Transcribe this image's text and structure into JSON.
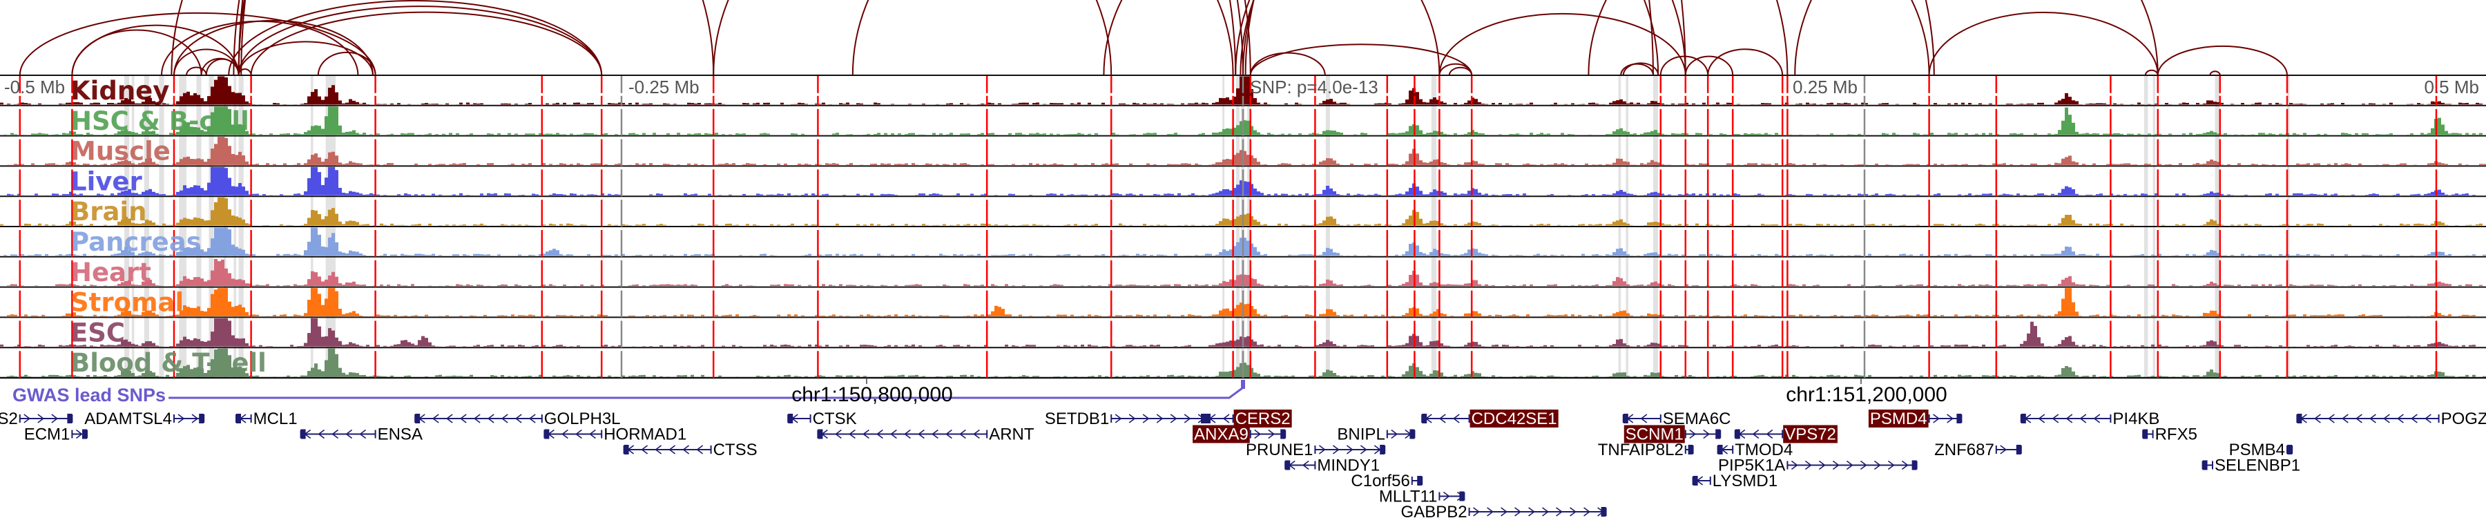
{
  "chart_data": {
    "type": "area",
    "title": "",
    "xlim_kb": [
      -500,
      500
    ],
    "axis_labels": [
      {
        "text": "-0.5 Mb",
        "kb": -500
      },
      {
        "text": "-0.25 Mb",
        "kb": -250
      },
      {
        "text": "SNP: p=4.0e-13",
        "kb": 0
      },
      {
        "text": "0.25 Mb",
        "kb": 250
      },
      {
        "text": "0.5 Mb",
        "kb": 500
      }
    ],
    "tracks": [
      {
        "name": "Kidney",
        "color": "#6b0000"
      },
      {
        "name": "HSC & B-cell",
        "color": "#55a355"
      },
      {
        "name": "Muscle",
        "color": "#c4675e"
      },
      {
        "name": "Liver",
        "color": "#4f4fe6"
      },
      {
        "name": "Brain",
        "color": "#c8922a"
      },
      {
        "name": "Pancreas",
        "color": "#85a2e0"
      },
      {
        "name": "Heart",
        "color": "#d46b7b"
      },
      {
        "name": "Stromal",
        "color": "#ff7410"
      },
      {
        "name": "ESC",
        "color": "#8b4665"
      },
      {
        "name": "Blood & T-cell",
        "color": "#6a8f69"
      }
    ],
    "peaks_kb": [
      [
        -472,
        0.1
      ],
      [
        -450,
        0.3
      ],
      [
        -441,
        0.3
      ],
      [
        -426,
        0.5
      ],
      [
        -421,
        0.4
      ],
      [
        -414,
        0.9
      ],
      [
        -411,
        1.0
      ],
      [
        -409,
        0.5
      ],
      [
        -404,
        0.45
      ],
      [
        -374,
        0.6
      ],
      [
        -367,
        0.8
      ],
      [
        -359,
        0.2
      ],
      [
        -8,
        0.3
      ],
      [
        -3,
        0.35
      ],
      [
        0,
        0.5
      ],
      [
        3,
        0.3
      ],
      [
        34,
        0.35
      ],
      [
        68,
        0.7
      ],
      [
        77,
        0.25
      ],
      [
        92,
        0.25
      ],
      [
        151,
        0.3
      ],
      [
        165,
        0.15
      ],
      [
        331,
        0.45
      ],
      [
        389,
        0.2
      ],
      [
        480,
        0.2
      ]
    ],
    "track_boosts": {
      "0": [
        [
          0,
          1.0
        ]
      ],
      "1": [
        [
          -367,
          1.0
        ],
        [
          -411,
          1.0
        ],
        [
          331,
          0.7
        ],
        [
          480,
          0.5
        ]
      ],
      "3": [
        [
          -414,
          1.0
        ],
        [
          -374,
          1.0
        ],
        [
          -367,
          1.0
        ]
      ],
      "5": [
        [
          -411,
          1.0
        ],
        [
          -374,
          1.0
        ],
        [
          -278,
          0.3
        ]
      ],
      "7": [
        [
          -374,
          0.95
        ],
        [
          -367,
          1.0
        ],
        [
          -99,
          0.45
        ],
        [
          331,
          0.9
        ]
      ],
      "8": [
        [
          -411,
          1.0
        ],
        [
          -374,
          1.0
        ],
        [
          317,
          0.9
        ],
        [
          -330,
          0.35
        ],
        [
          -338,
          0.25
        ]
      ],
      "9": [
        [
          -367,
          1.0
        ],
        [
          -411,
          0.9
        ]
      ]
    },
    "anchors_kb": [
      -492,
      -471,
      -430,
      -399,
      -349,
      -282,
      -258,
      -213,
      -171,
      -103,
      -53,
      -4,
      3,
      29,
      58,
      69,
      79,
      92,
      168,
      178,
      187,
      197,
      217,
      219,
      276,
      303,
      349,
      368,
      393,
      420,
      480
    ],
    "highlights_kb": [
      [
        -450,
        -448
      ],
      [
        -447,
        -446
      ],
      [
        -442,
        -440
      ],
      [
        -436,
        -434
      ],
      [
        -428,
        -425
      ],
      [
        -421,
        -419
      ],
      [
        -416,
        -414
      ],
      [
        -410,
        -409
      ],
      [
        -406,
        -405
      ],
      [
        -404,
        -402
      ],
      [
        -375,
        -374
      ],
      [
        -369,
        -365
      ],
      [
        -8.3,
        -7.5
      ],
      [
        -2.8,
        -1.4
      ],
      [
        -0.8,
        0.6
      ],
      [
        1.7,
        3.3
      ],
      [
        33.3,
        35
      ],
      [
        75.8,
        77.8
      ],
      [
        151,
        152
      ],
      [
        154,
        155
      ],
      [
        165,
        167
      ],
      [
        362.5,
        364
      ],
      [
        366,
        367
      ],
      [
        391,
        393
      ],
      [
        420,
        421
      ]
    ],
    "loops_kb": [
      [
        -492,
        -349,
        0.35
      ],
      [
        -471,
        -404,
        0.6
      ],
      [
        -471,
        -419,
        0.7
      ],
      [
        -430,
        -404,
        0.8
      ],
      [
        -430,
        -350,
        0.55
      ],
      [
        -435,
        -356,
        0.55
      ],
      [
        -425,
        -417,
        0.8
      ],
      [
        -419,
        -404,
        0.9
      ],
      [
        -417,
        -404,
        1
      ],
      [
        -404,
        -399,
        1
      ],
      [
        -404,
        -350,
        0.5
      ],
      [
        -408,
        -258,
        0.4
      ],
      [
        -404,
        -258,
        0.38
      ],
      [
        -399,
        -258,
        0.36
      ],
      [
        -404,
        0,
        1
      ],
      [
        -404,
        -3,
        1
      ],
      [
        -406,
        3,
        1
      ],
      [
        -403,
        165,
        1
      ],
      [
        -404,
        178,
        1
      ],
      [
        -372,
        -349,
        0.8
      ],
      [
        -431,
        -213,
        1
      ],
      [
        -213,
        -53,
        1
      ],
      [
        -157,
        -4,
        1
      ],
      [
        3,
        33,
        0.6
      ],
      [
        3,
        92,
        0.28
      ],
      [
        -3,
        167,
        1
      ],
      [
        -1,
        178,
        1
      ],
      [
        0,
        219,
        1
      ],
      [
        1,
        278,
        1
      ],
      [
        79,
        178,
        0.5
      ],
      [
        79,
        92,
        0.7
      ],
      [
        83,
        92,
        0.7
      ],
      [
        -56,
        79,
        1
      ],
      [
        152,
        165,
        0.7
      ],
      [
        153,
        167,
        0.7
      ],
      [
        168,
        187,
        0.8
      ],
      [
        178,
        197,
        0.8
      ],
      [
        187,
        217,
        0.7
      ],
      [
        139,
        276,
        1
      ],
      [
        276,
        368,
        0.55
      ],
      [
        363,
        368,
        0.8
      ],
      [
        368,
        420,
        0.45
      ],
      [
        222,
        368,
        1
      ],
      [
        389,
        393,
        0.8
      ]
    ]
  },
  "gwas": {
    "label": "GWAS lead SNPs",
    "snp_kb": 0,
    "color": "#6a5acd"
  },
  "coords": [
    {
      "label": "chr1:150,800,000",
      "kb": -151.4
    },
    {
      "label": "chr1:151,200,000",
      "kb": 248.6
    }
  ],
  "genes": [
    {
      "name": "S2",
      "start": -492,
      "end": -471,
      "strand": "+",
      "row": 0,
      "label_side": "left",
      "highlight": false
    },
    {
      "name": "ECM1",
      "start": -471,
      "end": -465,
      "strand": "+",
      "row": 1,
      "label_side": "left",
      "highlight": false
    },
    {
      "name": "ADAMTSL4",
      "start": -430,
      "end": -418,
      "strand": "+",
      "row": 0,
      "label_side": "left",
      "highlight": false
    },
    {
      "name": "MCL1",
      "start": -405,
      "end": -399,
      "strand": "-",
      "row": 0,
      "label_side": "right",
      "highlight": false
    },
    {
      "name": "ENSA",
      "start": -379,
      "end": -349,
      "strand": "-",
      "row": 1,
      "label_side": "right",
      "highlight": false
    },
    {
      "name": "GOLPH3L",
      "start": -333,
      "end": -282,
      "strand": "-",
      "row": 0,
      "label_side": "right",
      "highlight": false
    },
    {
      "name": "HORMAD1",
      "start": -281,
      "end": -258,
      "strand": "-",
      "row": 1,
      "label_side": "right",
      "highlight": false
    },
    {
      "name": "CTSS",
      "start": -249,
      "end": -214,
      "strand": "-",
      "row": 2,
      "label_side": "right",
      "highlight": false
    },
    {
      "name": "CTSK",
      "start": -183,
      "end": -174,
      "strand": "-",
      "row": 0,
      "label_side": "right",
      "highlight": false
    },
    {
      "name": "ARNT",
      "start": -171,
      "end": -103,
      "strand": "-",
      "row": 1,
      "label_side": "right",
      "highlight": false
    },
    {
      "name": "SETDB1",
      "start": -53,
      "end": -15,
      "strand": "+",
      "row": 0,
      "label_side": "left",
      "highlight": false
    },
    {
      "name": "CERS2",
      "start": -15,
      "end": -4,
      "strand": "-",
      "row": 0,
      "label_side": "right",
      "highlight": true
    },
    {
      "name": "ANXA9",
      "start": 3,
      "end": 17,
      "strand": "+",
      "row": 1,
      "label_side": "left",
      "highlight": true
    },
    {
      "name": "BNIPL",
      "start": 58,
      "end": 69,
      "strand": "+",
      "row": 1,
      "label_side": "left",
      "highlight": false
    },
    {
      "name": "PRUNE1",
      "start": 29,
      "end": 57,
      "strand": "+",
      "row": 2,
      "label_side": "left",
      "highlight": false
    },
    {
      "name": "MINDY1",
      "start": 17,
      "end": 29,
      "strand": "-",
      "row": 3,
      "label_side": "right",
      "highlight": false
    },
    {
      "name": "C1orf56",
      "start": 68,
      "end": 72,
      "strand": "+",
      "row": 4,
      "label_side": "left",
      "highlight": false
    },
    {
      "name": "MLLT11",
      "start": 79,
      "end": 89,
      "strand": "+",
      "row": 5,
      "label_side": "left",
      "highlight": false
    },
    {
      "name": "GABPB2",
      "start": 91,
      "end": 146,
      "strand": "+",
      "row": 6,
      "label_side": "left",
      "highlight": false
    },
    {
      "name": "CDC42SE1",
      "start": 72,
      "end": 91,
      "strand": "-",
      "row": 0,
      "label_side": "right",
      "highlight": true
    },
    {
      "name": "SEMA6C",
      "start": 153,
      "end": 168,
      "strand": "-",
      "row": 0,
      "label_side": "right",
      "highlight": false
    },
    {
      "name": "SCNM1",
      "start": 178,
      "end": 192,
      "strand": "+",
      "row": 1,
      "label_side": "left",
      "highlight": true
    },
    {
      "name": "TNFAIP8L2",
      "start": 178,
      "end": 181,
      "strand": "+",
      "row": 2,
      "label_side": "left",
      "highlight": false
    },
    {
      "name": "TMOD4",
      "start": 191,
      "end": 197,
      "strand": "-",
      "row": 2,
      "label_side": "right",
      "highlight": false
    },
    {
      "name": "VPS72",
      "start": 198,
      "end": 217,
      "strand": "-",
      "row": 1,
      "label_side": "right",
      "highlight": true
    },
    {
      "name": "PIP5K1A",
      "start": 219,
      "end": 271,
      "strand": "+",
      "row": 3,
      "label_side": "left",
      "highlight": false
    },
    {
      "name": "LYSMD1",
      "start": 181,
      "end": 188,
      "strand": "-",
      "row": 4,
      "label_side": "right",
      "highlight": false
    },
    {
      "name": "PSMD4",
      "start": 276,
      "end": 289,
      "strand": "+",
      "row": 0,
      "label_side": "left",
      "highlight": true
    },
    {
      "name": "ZNF687",
      "start": 303,
      "end": 313,
      "strand": "+",
      "row": 2,
      "label_side": "left",
      "highlight": false
    },
    {
      "name": "PI4KB",
      "start": 313,
      "end": 349,
      "strand": "-",
      "row": 0,
      "label_side": "right",
      "highlight": false
    },
    {
      "name": "RFX5",
      "start": 362,
      "end": 366,
      "strand": "-",
      "row": 1,
      "label_side": "right",
      "highlight": false
    },
    {
      "name": "PSMB4",
      "start": 420,
      "end": 422,
      "strand": "+",
      "row": 2,
      "label_side": "left",
      "highlight": false
    },
    {
      "name": "SELENBP1",
      "start": 386,
      "end": 390,
      "strand": "-",
      "row": 3,
      "label_side": "right",
      "highlight": false
    },
    {
      "name": "POGZ",
      "start": 424,
      "end": 481,
      "strand": "-",
      "row": 0,
      "label_side": "right",
      "highlight": false
    }
  ]
}
